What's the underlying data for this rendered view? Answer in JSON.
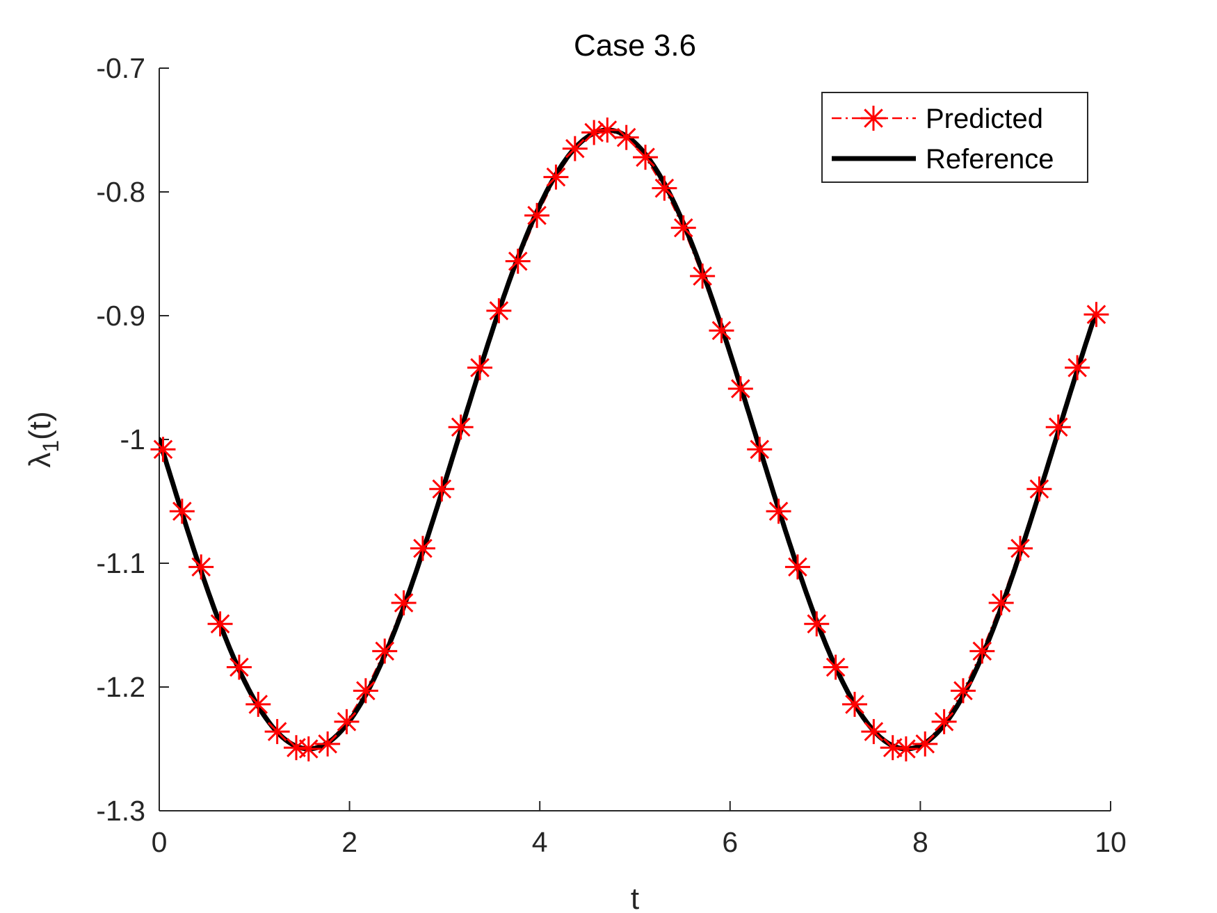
{
  "chart_data": {
    "type": "line",
    "title": "Case 3.6",
    "xlabel": "t",
    "ylabel": "λ1(t)",
    "ylabel_main": "λ",
    "ylabel_sub": "1",
    "ylabel_tail": "(t)",
    "xlim": [
      0,
      10
    ],
    "ylim": [
      -1.3,
      -0.7
    ],
    "xticks": [
      0,
      2,
      4,
      6,
      8,
      10
    ],
    "xtick_labels": [
      "0",
      "2",
      "4",
      "6",
      "8",
      "10"
    ],
    "yticks": [
      -1.3,
      -1.2,
      -1.1,
      -1,
      -0.9,
      -0.8,
      -0.7
    ],
    "ytick_labels": [
      "-1.3",
      "-1.2",
      "-1.1",
      "-1",
      "-0.9",
      "-0.8",
      "-0.7"
    ],
    "grid": false,
    "legend_position": "top-right",
    "series": [
      {
        "name": "Predicted",
        "color": "#ff0000",
        "marker": "asterisk",
        "line_style": "dash-dot",
        "x": [
          0.04,
          0.24,
          0.44,
          0.64,
          0.84,
          1.04,
          1.24,
          1.44,
          1.57,
          1.77,
          1.97,
          2.17,
          2.37,
          2.57,
          2.77,
          2.97,
          3.17,
          3.37,
          3.57,
          3.77,
          3.97,
          4.17,
          4.37,
          4.57,
          4.71,
          4.91,
          5.11,
          5.31,
          5.51,
          5.71,
          5.91,
          6.11,
          6.31,
          6.51,
          6.71,
          6.91,
          7.11,
          7.31,
          7.51,
          7.71,
          7.85,
          8.05,
          8.25,
          8.45,
          8.65,
          8.85,
          9.05,
          9.25,
          9.45,
          9.65,
          9.85
        ],
        "y": [
          -1.008,
          -1.058,
          -1.103,
          -1.149,
          -1.184,
          -1.214,
          -1.236,
          -1.249,
          -1.25,
          -1.246,
          -1.228,
          -1.203,
          -1.171,
          -1.132,
          -1.088,
          -1.04,
          -0.99,
          -0.942,
          -0.896,
          -0.856,
          -0.819,
          -0.788,
          -0.765,
          -0.752,
          -0.75,
          -0.756,
          -0.772,
          -0.797,
          -0.829,
          -0.868,
          -0.912,
          -0.959,
          -1.008,
          -1.058,
          -1.103,
          -1.149,
          -1.184,
          -1.214,
          -1.236,
          -1.249,
          -1.25,
          -1.246,
          -1.228,
          -1.203,
          -1.171,
          -1.132,
          -1.088,
          -1.04,
          -0.99,
          -0.942,
          -0.899
        ]
      },
      {
        "name": "Reference",
        "color": "#000000",
        "marker": "none",
        "line_style": "solid",
        "function": "-1 - 0.25*sin(t)",
        "x_range": [
          0,
          9.85
        ]
      }
    ]
  }
}
